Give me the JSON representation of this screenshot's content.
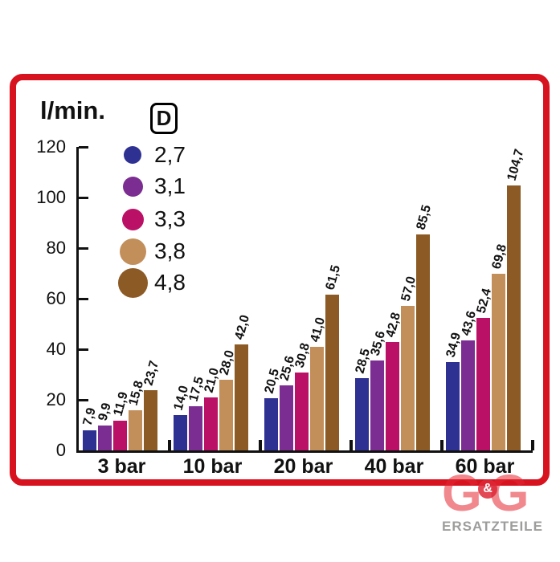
{
  "chart_data": {
    "type": "bar",
    "ylabel": "l/min.",
    "legend_title": "D",
    "legend_position": "top-left-inside",
    "grid": false,
    "ylim": [
      0,
      120
    ],
    "yticks": [
      0,
      20,
      40,
      60,
      80,
      100,
      120
    ],
    "categories": [
      "3 bar",
      "10 bar",
      "20 bar",
      "40 bar",
      "60 bar"
    ],
    "series": [
      {
        "name": "2,7",
        "color": "#2e3192",
        "values": [
          7.9,
          14.0,
          20.5,
          28.5,
          34.9
        ],
        "labels": [
          "7,9",
          "14,0",
          "20,5",
          "28,5",
          "34,9"
        ]
      },
      {
        "name": "3,1",
        "color": "#7b2d91",
        "values": [
          9.9,
          17.5,
          25.6,
          35.6,
          43.6
        ],
        "labels": [
          "9,9",
          "17,5",
          "25,6",
          "35,6",
          "43,6"
        ]
      },
      {
        "name": "3,3",
        "color": "#ba1166",
        "values": [
          11.9,
          21.0,
          30.8,
          42.8,
          52.4
        ],
        "labels": [
          "11,9",
          "21,0",
          "30,8",
          "42,8",
          "52,4"
        ]
      },
      {
        "name": "3,8",
        "color": "#c28f5b",
        "values": [
          15.8,
          28.0,
          41.0,
          57.0,
          69.8
        ],
        "labels": [
          "15,8",
          "28,0",
          "41,0",
          "57,0",
          "69,8"
        ]
      },
      {
        "name": "4,8",
        "color": "#8c5a24",
        "values": [
          23.7,
          42.0,
          61.5,
          85.5,
          104.7
        ],
        "labels": [
          "23,7",
          "42,0",
          "61,5",
          "85,5",
          "104,7"
        ]
      }
    ],
    "legend_dot_diameters": [
      22,
      25,
      27,
      33,
      37
    ]
  },
  "frame": {
    "border_color": "#d6131f"
  },
  "logo": {
    "g_left": "G",
    "ampersand": "&",
    "g_right": "G",
    "subtitle": "ERSATZTEILE",
    "pink": "#e42632",
    "gray": "#9d9d9c"
  }
}
